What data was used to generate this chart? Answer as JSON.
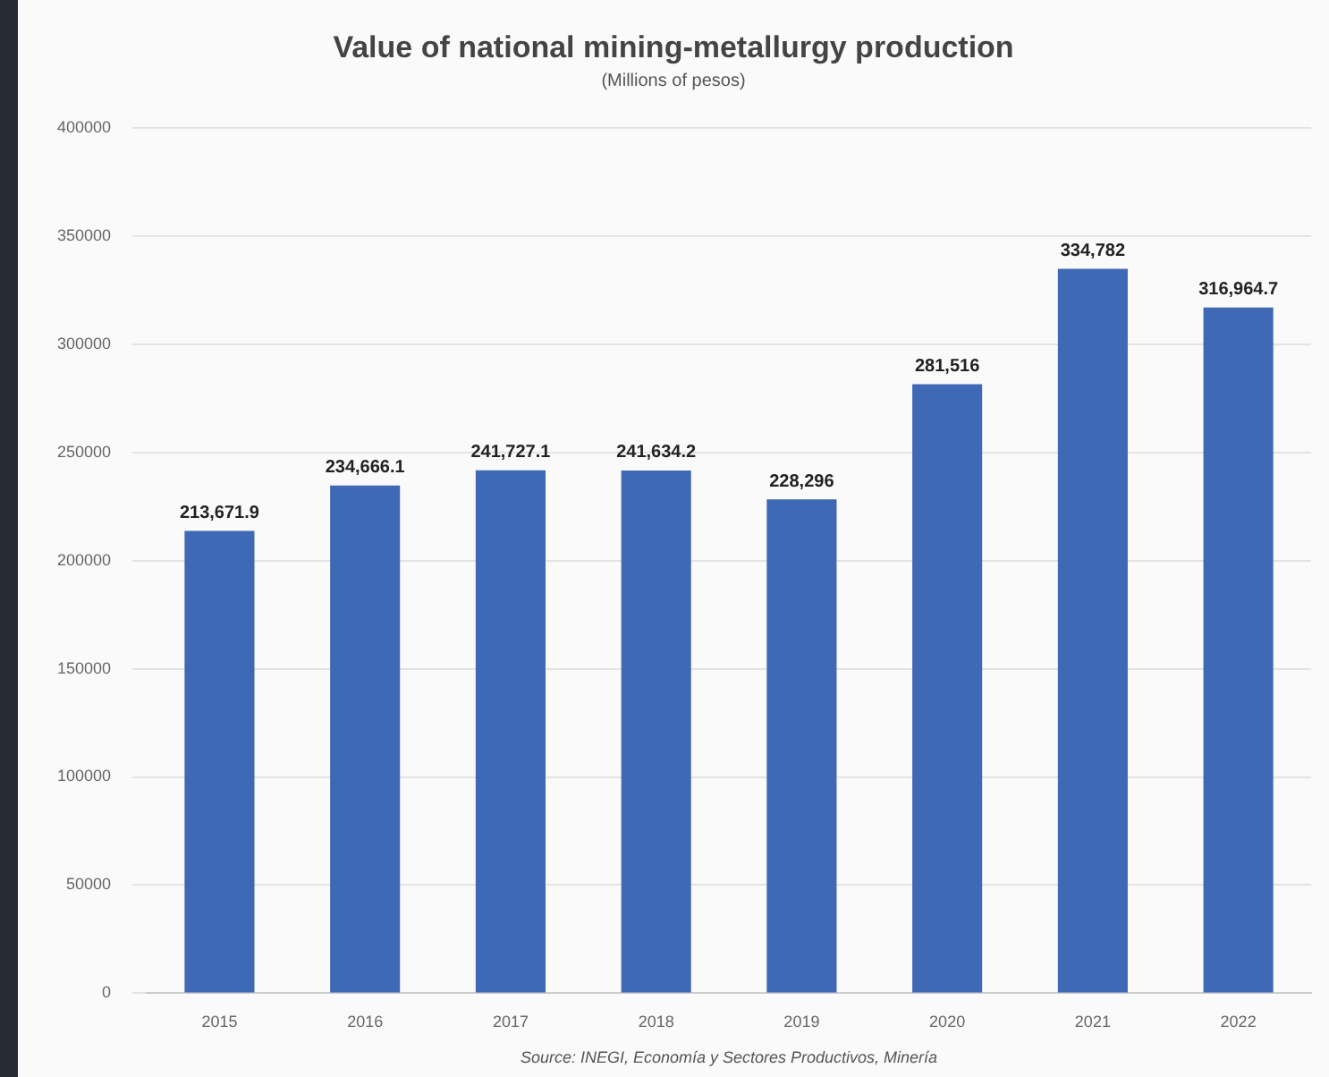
{
  "chart_data": {
    "type": "bar",
    "title": "Value of national mining-metallurgy production",
    "subtitle": "(Millions of pesos)",
    "categories": [
      "2015",
      "2016",
      "2017",
      "2018",
      "2019",
      "2020",
      "2021",
      "2022"
    ],
    "values": [
      213671.9,
      234666.1,
      241727.1,
      241634.2,
      228296,
      281516,
      334782,
      316964.7
    ],
    "value_labels": [
      "213,671.9",
      "234,666.1",
      "241,727.1",
      "241,634.2",
      "228,296",
      "281,516",
      "334,782",
      "316,964.7"
    ],
    "color": "#3f69b5",
    "ylim": [
      0,
      400000
    ],
    "yticks": [
      0,
      50000,
      100000,
      150000,
      200000,
      250000,
      300000,
      350000,
      400000
    ],
    "grid": "y",
    "legend": false,
    "annotations": [
      "Source: INEGI, Economía y Sectores Productivos, Minería"
    ]
  }
}
